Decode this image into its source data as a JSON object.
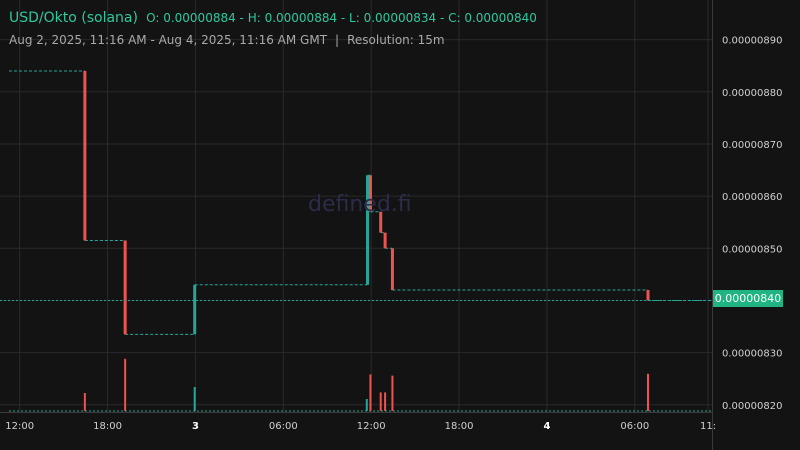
{
  "header": {
    "pair": "USD/Okto (solana)",
    "ohlc": "O: 0.00000884 - H: 0.00000884 - L: 0.00000834 - C: 0.00000840",
    "range": "Aug 2, 2025, 11:16 AM - Aug 4, 2025, 11:16 AM GMT",
    "separator": "|",
    "resolution": "Resolution: 15m"
  },
  "watermark": "defined.fi",
  "last_price": "0.00000840",
  "colors": {
    "up": "#26a69a",
    "down": "#ef5350",
    "background": "#131313",
    "badge": "#1fb482"
  },
  "chart_data": {
    "type": "line",
    "title": "",
    "xlabel": "",
    "ylabel": "",
    "grid": true,
    "y_axis_position": "right",
    "ylim": [
      8.19e-06,
      8.93e-06
    ],
    "y_ticks": [
      "0.00000890",
      "0.00000880",
      "0.00000870",
      "0.00000860",
      "0.00000850",
      "0.00000840",
      "0.00000830",
      "0.00000820"
    ],
    "x_ticks": [
      {
        "label": "12:00",
        "t": 12.0,
        "bold": false
      },
      {
        "label": "18:00",
        "t": 18.0,
        "bold": false
      },
      {
        "label": "3",
        "t": 24.0,
        "bold": true
      },
      {
        "label": "06:00",
        "t": 30.0,
        "bold": false
      },
      {
        "label": "12:00",
        "t": 36.0,
        "bold": false
      },
      {
        "label": "18:00",
        "t": 42.0,
        "bold": false
      },
      {
        "label": "4",
        "t": 48.0,
        "bold": true
      },
      {
        "label": "06:00",
        "t": 54.0,
        "bold": false
      },
      {
        "label": "11:",
        "t": 59.0,
        "bold": false
      }
    ],
    "xlim": [
      11.27,
      59.27
    ],
    "price_steps": [
      {
        "t": 11.27,
        "price": 8.84e-06
      },
      {
        "t": 16.45,
        "price": 8.515e-06
      },
      {
        "t": 19.2,
        "price": 8.335e-06
      },
      {
        "t": 23.95,
        "price": 8.43e-06
      },
      {
        "t": 35.75,
        "price": 8.64e-06
      },
      {
        "t": 35.95,
        "price": 8.57e-06
      },
      {
        "t": 36.65,
        "price": 8.53e-06
      },
      {
        "t": 36.95,
        "price": 8.5e-06
      },
      {
        "t": 37.45,
        "price": 8.42e-06
      },
      {
        "t": 54.9,
        "price": 8.4e-06
      }
    ],
    "end_t": 59.27,
    "volume_bars": [
      {
        "t": 16.45,
        "rel": 0.3,
        "dir": "down"
      },
      {
        "t": 19.2,
        "rel": 0.87,
        "dir": "down"
      },
      {
        "t": 23.95,
        "rel": 0.4,
        "dir": "up"
      },
      {
        "t": 35.7,
        "rel": 0.2,
        "dir": "up"
      },
      {
        "t": 35.95,
        "rel": 0.61,
        "dir": "down"
      },
      {
        "t": 36.65,
        "rel": 0.31,
        "dir": "down"
      },
      {
        "t": 36.95,
        "rel": 0.31,
        "dir": "down"
      },
      {
        "t": 37.45,
        "rel": 0.59,
        "dir": "down"
      },
      {
        "t": 54.9,
        "rel": 0.62,
        "dir": "down"
      }
    ]
  }
}
